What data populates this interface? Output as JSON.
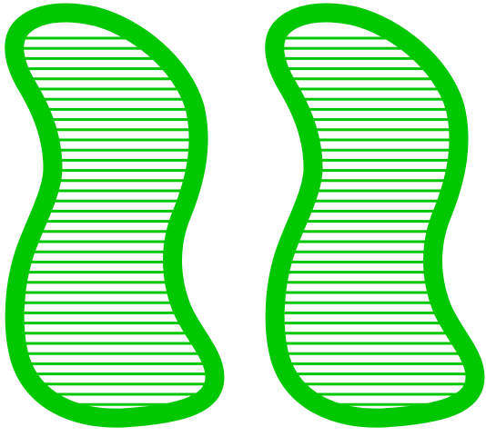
{
  "colors": {
    "background": "#ffffff",
    "shape_outline": "#00c800",
    "hatch_lines": "#00c800"
  },
  "shapes": [
    {
      "name": "left-kidney-shape",
      "fill_pattern": "horizontal-hatch"
    },
    {
      "name": "right-kidney-shape",
      "fill_pattern": "horizontal-hatch"
    }
  ]
}
